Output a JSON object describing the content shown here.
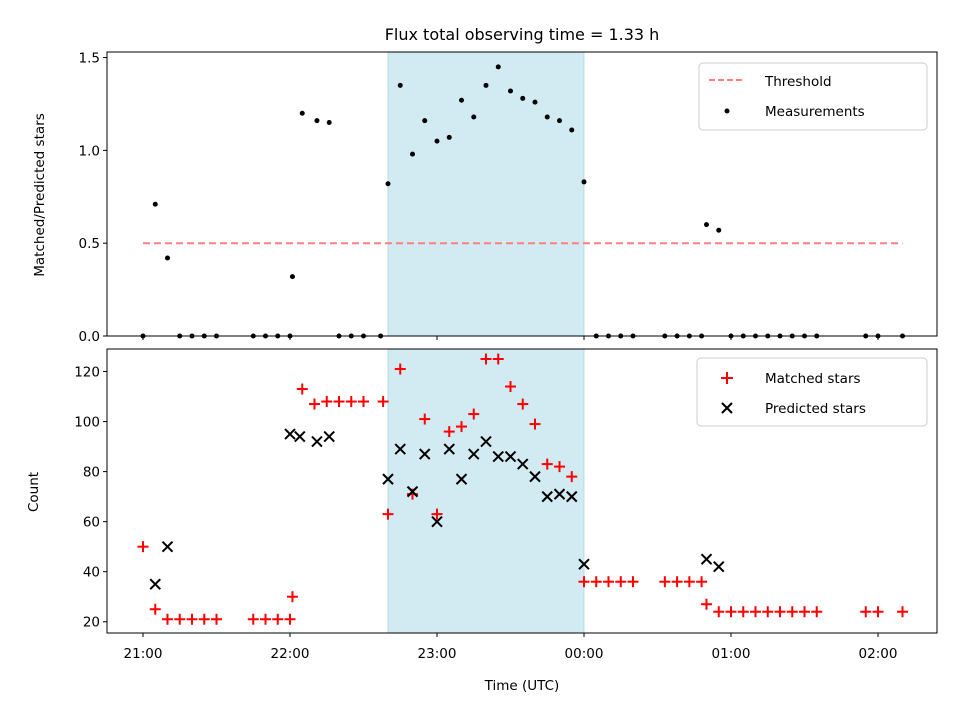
{
  "chart_data": [
    {
      "type": "scatter",
      "title": "Flux total observing time = 1.33 h",
      "xlabel": "",
      "ylabel": "Matched/Predicted stars",
      "ylim": [
        0,
        1.53
      ],
      "yticks": [
        "0.0",
        "0.5",
        "1.0",
        "1.5"
      ],
      "shaded_interval": [
        "22:40",
        "00:00"
      ],
      "shade_color": "#add8e6",
      "legend": "top-right",
      "threshold": {
        "name": "Threshold",
        "value": 0.5,
        "from": "21:00",
        "to": "02:10",
        "color": "#ff7f7f"
      },
      "series": [
        {
          "name": "Measurements",
          "color": "#000000",
          "points": [
            [
              "21:00",
              0
            ],
            [
              "21:05",
              0.71
            ],
            [
              "21:10",
              0.42
            ],
            [
              "21:15",
              0
            ],
            [
              "21:20",
              0
            ],
            [
              "21:25",
              0
            ],
            [
              "21:30",
              0
            ],
            [
              "21:45",
              0
            ],
            [
              "21:50",
              0
            ],
            [
              "21:55",
              0
            ],
            [
              "22:00",
              0
            ],
            [
              "22:01",
              0.32
            ],
            [
              "22:05",
              1.2
            ],
            [
              "22:11",
              1.16
            ],
            [
              "22:16",
              1.15
            ],
            [
              "22:20",
              0
            ],
            [
              "22:25",
              0
            ],
            [
              "22:30",
              0
            ],
            [
              "22:37",
              0
            ],
            [
              "22:40",
              0.82
            ],
            [
              "22:45",
              1.35
            ],
            [
              "22:50",
              0.98
            ],
            [
              "22:55",
              1.16
            ],
            [
              "23:00",
              1.05
            ],
            [
              "23:05",
              1.07
            ],
            [
              "23:10",
              1.27
            ],
            [
              "23:15",
              1.18
            ],
            [
              "23:20",
              1.35
            ],
            [
              "23:25",
              1.45
            ],
            [
              "23:30",
              1.32
            ],
            [
              "23:35",
              1.28
            ],
            [
              "23:40",
              1.26
            ],
            [
              "23:45",
              1.18
            ],
            [
              "23:50",
              1.16
            ],
            [
              "23:55",
              1.11
            ],
            [
              "00:00",
              0.83
            ],
            [
              "00:05",
              0
            ],
            [
              "00:10",
              0
            ],
            [
              "00:15",
              0
            ],
            [
              "00:20",
              0
            ],
            [
              "00:33",
              0
            ],
            [
              "00:38",
              0
            ],
            [
              "00:43",
              0
            ],
            [
              "00:48",
              0
            ],
            [
              "00:50",
              0.6
            ],
            [
              "00:55",
              0.57
            ],
            [
              "01:00",
              0
            ],
            [
              "01:05",
              0
            ],
            [
              "01:10",
              0
            ],
            [
              "01:15",
              0
            ],
            [
              "01:20",
              0
            ],
            [
              "01:25",
              0
            ],
            [
              "01:30",
              0
            ],
            [
              "01:35",
              0
            ],
            [
              "01:55",
              0
            ],
            [
              "02:00",
              0
            ],
            [
              "02:10",
              0
            ]
          ]
        }
      ]
    },
    {
      "type": "scatter",
      "title": "",
      "xlabel": "Time (UTC)",
      "ylabel": "Count",
      "ylim": [
        15.5,
        129
      ],
      "yticks": [
        "20",
        "40",
        "60",
        "80",
        "100",
        "120"
      ],
      "xticks": [
        "21:00",
        "22:00",
        "23:00",
        "00:00",
        "01:00",
        "02:00"
      ],
      "shaded_interval": [
        "22:40",
        "00:00"
      ],
      "shade_color": "#add8e6",
      "legend": "top-right",
      "series": [
        {
          "name": "Matched stars",
          "color": "#ff0000",
          "marker": "plus",
          "points": [
            [
              "21:00",
              50
            ],
            [
              "21:05",
              25
            ],
            [
              "21:10",
              21
            ],
            [
              "21:15",
              21
            ],
            [
              "21:20",
              21
            ],
            [
              "21:25",
              21
            ],
            [
              "21:30",
              21
            ],
            [
              "21:45",
              21
            ],
            [
              "21:50",
              21
            ],
            [
              "21:55",
              21
            ],
            [
              "22:00",
              21
            ],
            [
              "22:01",
              30
            ],
            [
              "22:05",
              113
            ],
            [
              "22:10",
              107
            ],
            [
              "22:15",
              108
            ],
            [
              "22:20",
              108
            ],
            [
              "22:25",
              108
            ],
            [
              "22:30",
              108
            ],
            [
              "22:38",
              108
            ],
            [
              "22:40",
              63
            ],
            [
              "22:45",
              121
            ],
            [
              "22:50",
              71
            ],
            [
              "22:55",
              101
            ],
            [
              "23:00",
              63
            ],
            [
              "23:05",
              96
            ],
            [
              "23:10",
              98
            ],
            [
              "23:15",
              103
            ],
            [
              "23:20",
              125
            ],
            [
              "23:25",
              125
            ],
            [
              "23:30",
              114
            ],
            [
              "23:35",
              107
            ],
            [
              "23:40",
              99
            ],
            [
              "23:45",
              83
            ],
            [
              "23:50",
              82
            ],
            [
              "23:55",
              78
            ],
            [
              "00:00",
              36
            ],
            [
              "00:05",
              36
            ],
            [
              "00:10",
              36
            ],
            [
              "00:15",
              36
            ],
            [
              "00:20",
              36
            ],
            [
              "00:33",
              36
            ],
            [
              "00:38",
              36
            ],
            [
              "00:43",
              36
            ],
            [
              "00:48",
              36
            ],
            [
              "00:50",
              27
            ],
            [
              "00:55",
              24
            ],
            [
              "01:00",
              24
            ],
            [
              "01:05",
              24
            ],
            [
              "01:10",
              24
            ],
            [
              "01:15",
              24
            ],
            [
              "01:20",
              24
            ],
            [
              "01:25",
              24
            ],
            [
              "01:30",
              24
            ],
            [
              "01:35",
              24
            ],
            [
              "01:55",
              24
            ],
            [
              "02:00",
              24
            ],
            [
              "02:10",
              24
            ]
          ]
        },
        {
          "name": "Predicted stars",
          "color": "#000000",
          "marker": "x",
          "points": [
            [
              "21:05",
              35
            ],
            [
              "21:10",
              50
            ],
            [
              "22:00",
              95
            ],
            [
              "22:04",
              94
            ],
            [
              "22:11",
              92
            ],
            [
              "22:16",
              94
            ],
            [
              "22:40",
              77
            ],
            [
              "22:45",
              89
            ],
            [
              "22:50",
              72
            ],
            [
              "22:55",
              87
            ],
            [
              "23:00",
              60
            ],
            [
              "23:05",
              89
            ],
            [
              "23:10",
              77
            ],
            [
              "23:15",
              87
            ],
            [
              "23:20",
              92
            ],
            [
              "23:25",
              86
            ],
            [
              "23:30",
              86
            ],
            [
              "23:35",
              83
            ],
            [
              "23:40",
              78
            ],
            [
              "23:45",
              70
            ],
            [
              "23:50",
              71
            ],
            [
              "23:55",
              70
            ],
            [
              "00:00",
              43
            ],
            [
              "00:50",
              45
            ],
            [
              "00:55",
              42
            ]
          ]
        }
      ]
    }
  ]
}
